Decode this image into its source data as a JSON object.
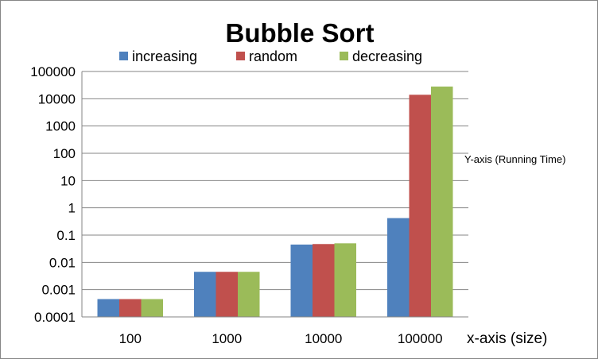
{
  "chart_data": {
    "type": "bar",
    "title": "Bubble Sort",
    "xlabel": "x-axis (size)",
    "ylabel": "Y-axis (Running Time)",
    "yscale": "log",
    "ylim": [
      0.0001,
      100000
    ],
    "yticks": [
      "100000",
      "10000",
      "1000",
      "100",
      "10",
      "1",
      "0.1",
      "0.01",
      "0.001",
      "0.0001"
    ],
    "categories": [
      "100",
      "1000",
      "10000",
      "100000"
    ],
    "legend_position": "top",
    "grid": true,
    "series": [
      {
        "name": "increasing",
        "color": "#4f81bd",
        "values": [
          0.00045,
          0.0045,
          0.045,
          0.42
        ]
      },
      {
        "name": "random",
        "color": "#c0504d",
        "values": [
          0.00045,
          0.0045,
          0.047,
          14000
        ]
      },
      {
        "name": "decreasing",
        "color": "#9bbb59",
        "values": [
          0.00045,
          0.0045,
          0.05,
          28000
        ]
      }
    ]
  }
}
